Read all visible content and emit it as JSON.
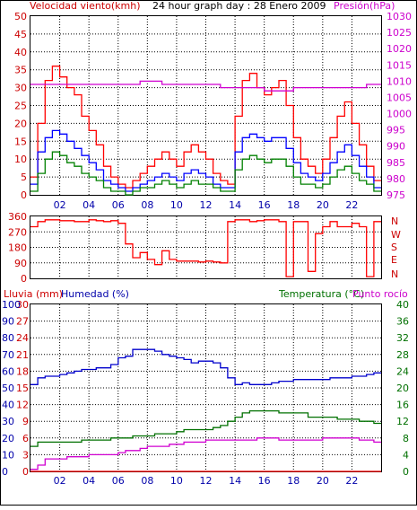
{
  "colors": {
    "wind_speed": "#ff0000",
    "wind_avg": "#0000ff",
    "wind_gust_low": "#008000",
    "pressure": "#d000d0",
    "wind_dir": "#ff0000",
    "rain": "#ff0000",
    "humidity": "#0000cc",
    "temperature": "#007000",
    "dewpoint": "#d000d0",
    "grid": "#000000",
    "frame": "#000000",
    "background": "#ffffff",
    "label_red": "#cc0000",
    "label_blue": "#0000aa",
    "label_green": "#007000",
    "label_magenta": "#cc00cc"
  },
  "header": {
    "left_label": "Velocidad viento(kmh)",
    "title": "24 hour graph day : 28 Enero 2009",
    "right_label": "Presión(hPa)"
  },
  "lower_header": {
    "rain_label": "Lluvia (mm)",
    "humidity_label": "Humedad (%)",
    "temp_label": "Temperatura (°C)",
    "dew_label": "Punto rocío"
  },
  "x_ticks": [
    "02",
    "04",
    "06",
    "08",
    "10",
    "12",
    "14",
    "16",
    "18",
    "20",
    "22"
  ],
  "chart_data": [
    {
      "type": "line",
      "title": "24 hour graph day : 28 Enero 2009",
      "ylabel": "Velocidad viento(kmh)",
      "ylim": [
        0,
        50
      ],
      "y2label": "Presión(hPa)",
      "y2lim": [
        975,
        1030
      ],
      "y_ticks": [
        0,
        5,
        10,
        15,
        20,
        25,
        30,
        35,
        40,
        45,
        50
      ],
      "y2_ticks": [
        975,
        980,
        985,
        990,
        995,
        1000,
        1005,
        1010,
        1015,
        1020,
        1025,
        1030
      ],
      "x_hours": [
        0,
        0.5,
        1,
        1.5,
        2,
        2.5,
        3,
        3.5,
        4,
        4.5,
        5,
        5.5,
        6,
        6.5,
        7,
        7.5,
        8,
        8.5,
        9,
        9.5,
        10,
        10.5,
        11,
        11.5,
        12,
        12.5,
        13,
        13.5,
        14,
        14.5,
        15,
        15.5,
        16,
        16.5,
        17,
        17.5,
        18,
        18.5,
        19,
        19.5,
        20,
        20.5,
        21,
        21.5,
        22,
        22.5,
        23,
        23.5
      ],
      "series": [
        {
          "values": [
            5,
            20,
            32,
            36,
            33,
            30,
            28,
            22,
            18,
            14,
            8,
            5,
            3,
            2,
            4,
            6,
            8,
            10,
            12,
            10,
            8,
            12,
            14,
            12,
            10,
            6,
            4,
            3,
            22,
            32,
            34,
            30,
            28,
            30,
            32,
            25,
            16,
            10,
            8,
            6,
            10,
            16,
            22,
            26,
            20,
            14,
            8,
            4
          ]
        },
        {
          "values": [
            3,
            12,
            16,
            18,
            17,
            15,
            13,
            11,
            9,
            7,
            4,
            3,
            2,
            1,
            2,
            3,
            4,
            5,
            6,
            5,
            4,
            6,
            7,
            6,
            5,
            3,
            2,
            2,
            12,
            16,
            17,
            16,
            15,
            16,
            16,
            13,
            9,
            6,
            5,
            4,
            6,
            9,
            12,
            14,
            11,
            8,
            5,
            2
          ]
        },
        {
          "values": [
            1,
            6,
            10,
            12,
            11,
            9,
            8,
            6,
            5,
            4,
            2,
            1,
            1,
            0,
            1,
            2,
            2,
            3,
            4,
            3,
            2,
            3,
            4,
            3,
            3,
            2,
            1,
            1,
            7,
            10,
            11,
            10,
            9,
            10,
            10,
            8,
            5,
            3,
            3,
            2,
            3,
            5,
            7,
            8,
            6,
            4,
            3,
            1
          ]
        },
        {
          "values": [
            1009,
            1009,
            1009,
            1009,
            1009,
            1009,
            1009,
            1009,
            1009,
            1009,
            1009,
            1009,
            1009,
            1009,
            1009,
            1010,
            1010,
            1010,
            1009,
            1009,
            1009,
            1009,
            1009,
            1009,
            1009,
            1009,
            1008,
            1008,
            1008,
            1008,
            1008,
            1008,
            1007,
            1007,
            1007,
            1007,
            1008,
            1008,
            1008,
            1008,
            1008,
            1008,
            1008,
            1008,
            1008,
            1008,
            1009,
            1009
          ]
        }
      ]
    },
    {
      "type": "line",
      "ylabel": "",
      "ylim": [
        0,
        360
      ],
      "y_ticks": [
        0,
        90,
        180,
        270,
        360
      ],
      "compass_ticks": [
        "N",
        "W",
        "S",
        "E",
        "N"
      ],
      "x_hours": [
        0,
        0.5,
        1,
        1.5,
        2,
        2.5,
        3,
        3.5,
        4,
        4.5,
        5,
        5.5,
        6,
        6.5,
        7,
        7.5,
        8,
        8.5,
        9,
        9.5,
        10,
        10.5,
        11,
        11.5,
        12,
        12.5,
        13,
        13.5,
        14,
        14.5,
        15,
        15.5,
        16,
        16.5,
        17,
        17.5,
        18,
        18.5,
        19,
        19.5,
        20,
        20.5,
        21,
        21.5,
        22,
        22.5,
        23,
        23.5
      ],
      "series": [
        {
          "values": [
            300,
            330,
            340,
            340,
            335,
            335,
            330,
            330,
            340,
            335,
            330,
            335,
            320,
            200,
            120,
            150,
            110,
            80,
            160,
            110,
            100,
            100,
            100,
            95,
            100,
            95,
            90,
            330,
            340,
            340,
            330,
            335,
            340,
            340,
            330,
            10,
            330,
            330,
            40,
            260,
            300,
            330,
            300,
            300,
            320,
            300,
            10,
            330
          ]
        }
      ]
    },
    {
      "type": "line",
      "ylabel": "Lluvia (mm)",
      "ylim": [
        0,
        30
      ],
      "y_ticks": [
        0,
        3,
        6,
        9,
        12,
        15,
        18,
        21,
        24,
        27,
        30
      ],
      "hum_ticks": [
        0,
        10,
        20,
        30,
        40,
        50,
        60,
        70,
        80,
        90,
        100
      ],
      "y2label": "Temperatura (°C)",
      "y2lim": [
        0,
        40
      ],
      "y2_ticks": [
        0,
        4,
        8,
        12,
        16,
        20,
        24,
        28,
        32,
        36,
        40
      ],
      "x_hours": [
        0,
        0.5,
        1,
        1.5,
        2,
        2.5,
        3,
        3.5,
        4,
        4.5,
        5,
        5.5,
        6,
        6.5,
        7,
        7.5,
        8,
        8.5,
        9,
        9.5,
        10,
        10.5,
        11,
        11.5,
        12,
        12.5,
        13,
        13.5,
        14,
        14.5,
        15,
        15.5,
        16,
        16.5,
        17,
        17.5,
        18,
        18.5,
        19,
        19.5,
        20,
        20.5,
        21,
        21.5,
        22,
        22.5,
        23,
        23.5
      ],
      "series": [
        {
          "values": [
            0,
            0,
            0,
            0,
            0,
            0,
            0,
            0,
            0,
            0,
            0,
            0,
            0,
            0,
            0,
            0,
            0,
            0,
            0,
            0,
            0,
            0,
            0,
            0,
            0,
            0,
            0,
            0,
            0,
            0,
            0,
            0,
            0,
            0,
            0,
            0,
            0,
            0,
            0,
            0,
            0,
            0,
            0,
            0,
            0,
            0,
            0,
            0
          ]
        },
        {
          "values": [
            52,
            56,
            57,
            57,
            58,
            59,
            60,
            61,
            61,
            62,
            62,
            64,
            68,
            69,
            73,
            73,
            73,
            72,
            70,
            69,
            68,
            67,
            65,
            66,
            66,
            65,
            62,
            56,
            52,
            53,
            52,
            52,
            52,
            53,
            54,
            54,
            55,
            55,
            55,
            55,
            55,
            56,
            56,
            56,
            57,
            57,
            58,
            59
          ]
        },
        {
          "values": [
            6,
            7,
            7,
            7,
            7,
            7,
            7,
            7.5,
            7.5,
            7.5,
            7.5,
            8,
            8,
            8,
            8.5,
            8.5,
            8.5,
            9,
            9,
            9,
            9.5,
            10,
            10,
            10,
            10,
            10.5,
            11,
            12,
            13,
            14,
            14.5,
            14.5,
            14.5,
            14.5,
            14,
            14,
            14,
            14,
            13,
            13,
            13,
            13,
            12.5,
            12.5,
            12.5,
            12,
            12,
            11.5
          ]
        },
        {
          "values": [
            0.5,
            1.5,
            3,
            3,
            3,
            3.5,
            3.5,
            3.5,
            4,
            4,
            4,
            4,
            4.5,
            5,
            5,
            5.5,
            6,
            6,
            6,
            6.5,
            6.5,
            7,
            7,
            7,
            7.5,
            7.5,
            7.5,
            7.5,
            7.5,
            7.5,
            7.5,
            8,
            8,
            8,
            7.5,
            7.5,
            7.5,
            7.5,
            7.5,
            7.5,
            8,
            8,
            8,
            8,
            8,
            7.5,
            7.5,
            7
          ]
        }
      ]
    }
  ]
}
